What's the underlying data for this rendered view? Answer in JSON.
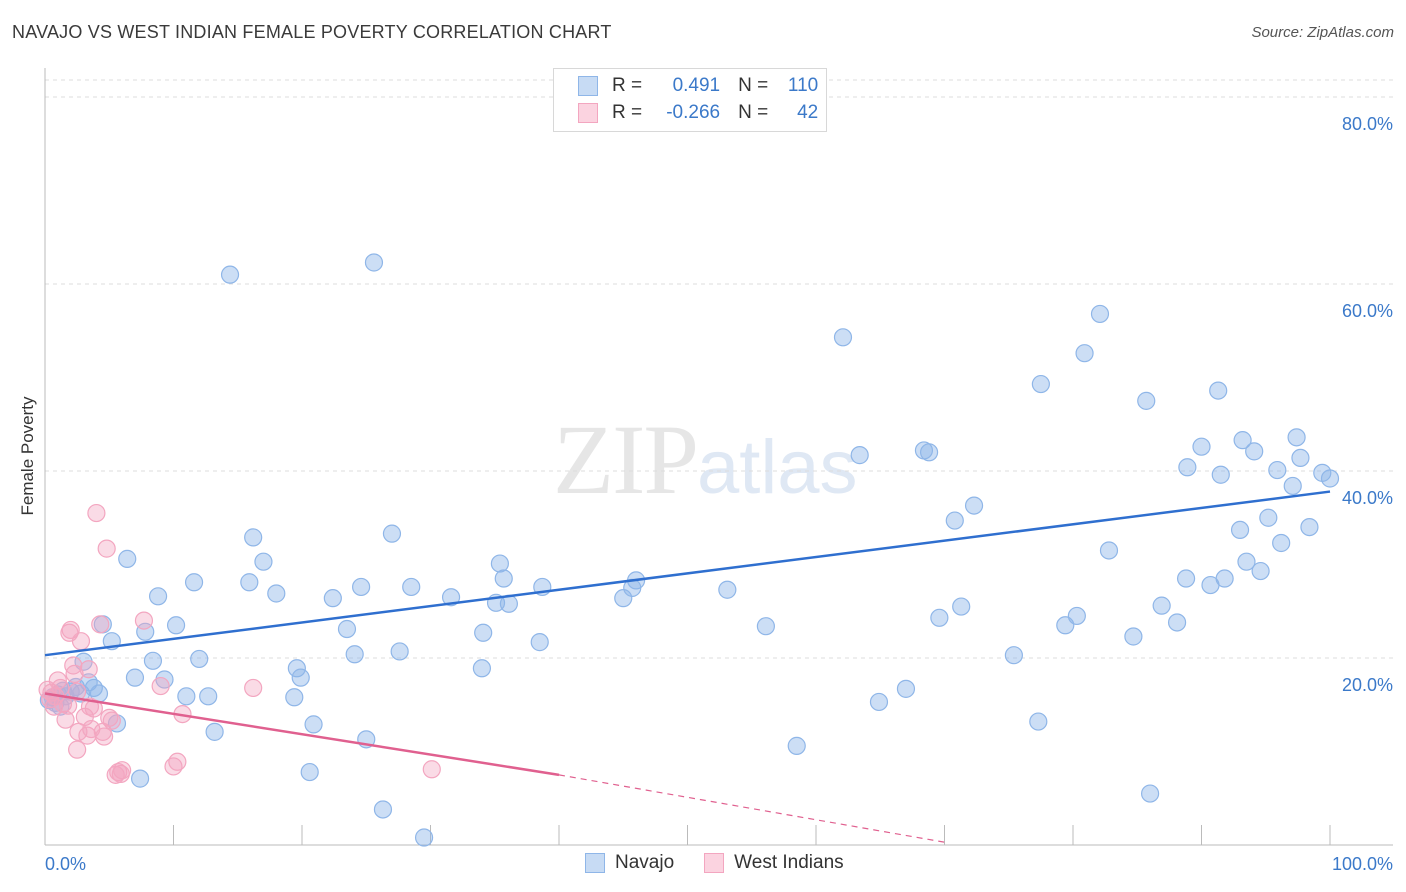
{
  "title": "NAVAJO VS WEST INDIAN FEMALE POVERTY CORRELATION CHART",
  "source": "Source: ZipAtlas.com",
  "watermark": {
    "zip": "ZIP",
    "atlas": "atlas"
  },
  "legend": {
    "rows": [
      {
        "r_label": "R =",
        "r_value": "0.491",
        "n_label": "N =",
        "n_value": "110"
      },
      {
        "r_label": "R =",
        "r_value": "-0.266",
        "n_label": "N =",
        "n_value": "42"
      }
    ]
  },
  "bottom_legend": [
    "Navajo",
    "West Indians"
  ],
  "colors": {
    "navajo": "#8fb6e8",
    "navajo_line": "#2f6fcf",
    "west": "#f3a6c0",
    "west_line": "#e0608f",
    "tick_label": "#3b79c9"
  },
  "chart_data": {
    "type": "scatter",
    "ylabel": "Female Poverty",
    "xlim": [
      0,
      100
    ],
    "ylim": [
      0,
      80
    ],
    "x_tick_labels": [
      "0.0%",
      "100.0%"
    ],
    "y_ticks": [
      20,
      40,
      60,
      80
    ],
    "y_tick_labels": [
      "20.0%",
      "40.0%",
      "60.0%",
      "80.0%"
    ],
    "grid": true,
    "series": [
      {
        "name": "Navajo",
        "trend": {
          "x": [
            0,
            100
          ],
          "y": [
            20.3,
            37.8
          ]
        },
        "points": [
          [
            0.3,
            15.5
          ],
          [
            0.6,
            15.8
          ],
          [
            0.8,
            15.2
          ],
          [
            1.0,
            16.1
          ],
          [
            1.2,
            14.8
          ],
          [
            1.4,
            16.5
          ],
          [
            1.6,
            15.9
          ],
          [
            2.0,
            16.4
          ],
          [
            2.4,
            16.9
          ],
          [
            2.8,
            16.2
          ],
          [
            3.0,
            19.6
          ],
          [
            3.4,
            17.4
          ],
          [
            3.8,
            16.8
          ],
          [
            4.2,
            16.2
          ],
          [
            4.5,
            23.6
          ],
          [
            5.2,
            21.8
          ],
          [
            5.6,
            13.0
          ],
          [
            6.4,
            30.6
          ],
          [
            7.0,
            17.9
          ],
          [
            7.4,
            7.1
          ],
          [
            7.8,
            22.8
          ],
          [
            8.4,
            19.7
          ],
          [
            8.8,
            26.6
          ],
          [
            9.3,
            17.7
          ],
          [
            10.2,
            23.5
          ],
          [
            11.0,
            15.9
          ],
          [
            11.6,
            28.1
          ],
          [
            12.0,
            19.9
          ],
          [
            12.7,
            15.9
          ],
          [
            13.2,
            12.1
          ],
          [
            14.4,
            61.0
          ],
          [
            15.9,
            28.1
          ],
          [
            16.2,
            32.9
          ],
          [
            17.0,
            30.3
          ],
          [
            18.0,
            26.9
          ],
          [
            19.4,
            15.8
          ],
          [
            19.6,
            18.9
          ],
          [
            19.9,
            17.9
          ],
          [
            20.6,
            7.8
          ],
          [
            20.9,
            12.9
          ],
          [
            22.4,
            26.4
          ],
          [
            23.5,
            23.1
          ],
          [
            24.1,
            20.4
          ],
          [
            24.6,
            27.6
          ],
          [
            25.0,
            11.3
          ],
          [
            25.6,
            62.3
          ],
          [
            26.3,
            3.8
          ],
          [
            27.0,
            33.3
          ],
          [
            27.6,
            20.7
          ],
          [
            28.5,
            27.6
          ],
          [
            29.5,
            0.8
          ],
          [
            31.6,
            26.5
          ],
          [
            34.0,
            18.9
          ],
          [
            34.1,
            22.7
          ],
          [
            35.1,
            25.9
          ],
          [
            35.4,
            30.1
          ],
          [
            35.7,
            28.5
          ],
          [
            36.1,
            25.8
          ],
          [
            38.5,
            21.7
          ],
          [
            38.7,
            27.6
          ],
          [
            45.0,
            26.4
          ],
          [
            45.7,
            27.5
          ],
          [
            46.0,
            28.3
          ],
          [
            53.1,
            27.3
          ],
          [
            56.1,
            23.4
          ],
          [
            58.5,
            10.6
          ],
          [
            62.1,
            54.3
          ],
          [
            63.4,
            41.7
          ],
          [
            64.9,
            15.3
          ],
          [
            67.0,
            16.7
          ],
          [
            68.4,
            42.2
          ],
          [
            68.8,
            42.0
          ],
          [
            69.6,
            24.3
          ],
          [
            70.8,
            34.7
          ],
          [
            71.3,
            25.5
          ],
          [
            72.3,
            36.3
          ],
          [
            75.4,
            20.3
          ],
          [
            77.3,
            13.2
          ],
          [
            77.5,
            49.3
          ],
          [
            79.4,
            23.5
          ],
          [
            80.3,
            24.5
          ],
          [
            80.9,
            52.6
          ],
          [
            82.1,
            56.8
          ],
          [
            82.8,
            31.5
          ],
          [
            84.7,
            22.3
          ],
          [
            85.7,
            47.5
          ],
          [
            86.0,
            5.5
          ],
          [
            86.9,
            25.6
          ],
          [
            88.1,
            23.8
          ],
          [
            88.8,
            28.5
          ],
          [
            88.9,
            40.4
          ],
          [
            90.0,
            42.6
          ],
          [
            90.7,
            27.8
          ],
          [
            91.3,
            48.6
          ],
          [
            91.5,
            39.6
          ],
          [
            91.8,
            28.5
          ],
          [
            93.0,
            33.7
          ],
          [
            93.2,
            43.3
          ],
          [
            93.5,
            30.3
          ],
          [
            94.1,
            42.1
          ],
          [
            94.6,
            29.3
          ],
          [
            95.2,
            35.0
          ],
          [
            95.9,
            40.1
          ],
          [
            96.2,
            32.3
          ],
          [
            97.1,
            38.4
          ],
          [
            97.4,
            43.6
          ],
          [
            97.7,
            41.4
          ],
          [
            98.4,
            34.0
          ],
          [
            99.4,
            39.8
          ],
          [
            100.0,
            39.2
          ]
        ]
      },
      {
        "name": "West Indians",
        "trend": {
          "x": [
            0,
            40
          ],
          "y": [
            16.2,
            7.5
          ]
        },
        "trend_dashed": {
          "x": [
            40,
            70
          ],
          "y": [
            7.5,
            0.3
          ]
        },
        "points": [
          [
            0.2,
            16.6
          ],
          [
            0.4,
            15.6
          ],
          [
            0.5,
            16.3
          ],
          [
            0.7,
            14.8
          ],
          [
            0.8,
            15.9
          ],
          [
            1.0,
            17.6
          ],
          [
            1.2,
            16.8
          ],
          [
            1.4,
            15.1
          ],
          [
            1.6,
            13.4
          ],
          [
            1.8,
            14.9
          ],
          [
            1.9,
            22.7
          ],
          [
            2.0,
            23.0
          ],
          [
            2.2,
            19.2
          ],
          [
            2.3,
            18.3
          ],
          [
            2.5,
            16.4
          ],
          [
            2.5,
            10.2
          ],
          [
            2.6,
            12.1
          ],
          [
            2.8,
            21.8
          ],
          [
            3.1,
            13.7
          ],
          [
            3.3,
            11.7
          ],
          [
            3.4,
            18.8
          ],
          [
            3.5,
            14.8
          ],
          [
            3.6,
            12.4
          ],
          [
            3.8,
            14.6
          ],
          [
            4.0,
            35.5
          ],
          [
            4.3,
            23.6
          ],
          [
            4.5,
            12.1
          ],
          [
            4.6,
            11.6
          ],
          [
            4.8,
            31.7
          ],
          [
            5.0,
            13.6
          ],
          [
            5.2,
            13.3
          ],
          [
            5.5,
            7.5
          ],
          [
            5.7,
            7.8
          ],
          [
            5.9,
            7.6
          ],
          [
            6.0,
            8.0
          ],
          [
            7.7,
            24.0
          ],
          [
            9.0,
            17.0
          ],
          [
            10.0,
            8.4
          ],
          [
            10.3,
            8.9
          ],
          [
            10.7,
            14.0
          ],
          [
            16.2,
            16.8
          ],
          [
            30.1,
            8.1
          ]
        ]
      }
    ]
  }
}
